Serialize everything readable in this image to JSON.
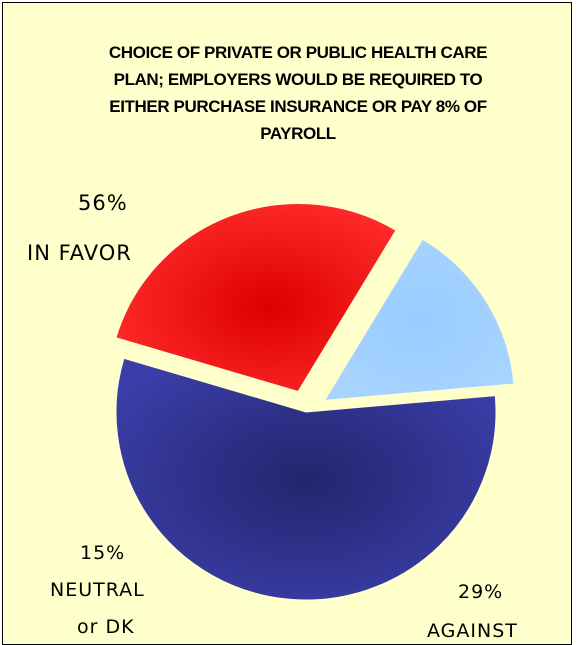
{
  "chart_data": {
    "type": "pie",
    "title": "CHOICE OF PRIVATE OR PUBLIC HEALTH CARE PLAN; EMPLOYERS WOULD BE REQUIRED TO EITHER PURCHASE INSURANCE OR PAY 8% OF PAYROLL",
    "title_lines": [
      "CHOICE OF PRIVATE OR PUBLIC HEALTH CARE",
      "PLAN; EMPLOYERS WOULD BE REQUIRED TO",
      "EITHER PURCHASE INSURANCE OR PAY 8% OF",
      "PAYROLL"
    ],
    "slices": [
      {
        "category": "IN FAVOR",
        "value": 56,
        "percent_label": "56%",
        "label_lines": [
          "IN FAVOR"
        ],
        "color": "#2e3192",
        "exploded": false
      },
      {
        "category": "AGAINST",
        "value": 29,
        "percent_label": "29%",
        "label_lines": [
          "AGAINST"
        ],
        "color": "#ee0000",
        "exploded": true
      },
      {
        "category": "NEUTRAL or DK",
        "value": 15,
        "percent_label": "15%",
        "label_lines": [
          "NEUTRAL",
          "or DK"
        ],
        "color": "#99ccff",
        "exploded": true
      }
    ],
    "legend": "none",
    "background_color": "#ffffcc"
  }
}
